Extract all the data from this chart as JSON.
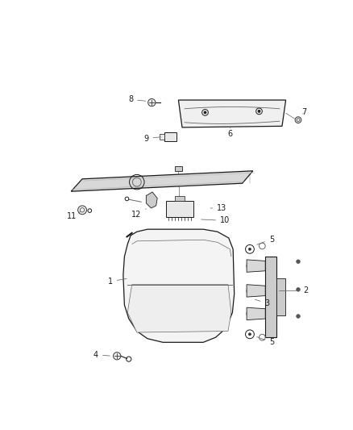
{
  "bg_color": "#ffffff",
  "fig_width": 4.38,
  "fig_height": 5.33,
  "dpi": 100,
  "dark": "#1a1a1a",
  "gray": "#666666",
  "lgray": "#aaaaaa"
}
